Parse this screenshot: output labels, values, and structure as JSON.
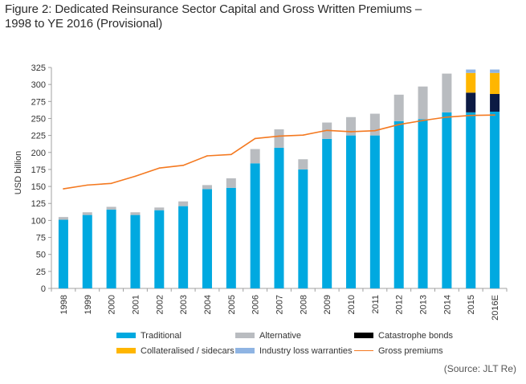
{
  "title": {
    "line1": "Figure 2: Dedicated Reinsurance Sector Capital and Gross Written Premiums –",
    "line2": "1998 to YE 2016 (Provisional)"
  },
  "source": "(Source: JLT Re)",
  "colors": {
    "traditional": "#00a9e0",
    "alternative": "#b9bcc0",
    "catastrophe_bonds": "#0c1a44",
    "collateralised": "#ffb600",
    "ilw": "#8fb4e3",
    "gross_premiums": "#f47920",
    "axis": "#a0a0a0"
  },
  "legend": [
    {
      "key": "traditional",
      "label": "Traditional",
      "type": "bar"
    },
    {
      "key": "alternative",
      "label": "Alternative",
      "type": "bar"
    },
    {
      "key": "catastrophe_bonds",
      "label": "Catastrophe bonds",
      "type": "bar",
      "swatch_color": "#000000"
    },
    {
      "key": "collateralised",
      "label": "Collateralised / sidecars",
      "type": "bar"
    },
    {
      "key": "ilw",
      "label": "Industry loss warranties",
      "type": "bar"
    },
    {
      "key": "gross_premiums",
      "label": "Gross premiums",
      "type": "line"
    }
  ],
  "chart_data": {
    "type": "bar",
    "stacked": true,
    "title": "Dedicated Reinsurance Sector Capital and Gross Written Premiums – 1998 to YE 2016 (Provisional)",
    "xlabel": "",
    "ylabel": "USD billion",
    "ylim": [
      0,
      325
    ],
    "yticks": [
      0,
      25,
      50,
      75,
      100,
      125,
      150,
      175,
      200,
      225,
      250,
      275,
      300,
      325
    ],
    "grid": false,
    "legend_position": "bottom",
    "categories": [
      "1998",
      "1999",
      "2000",
      "2001",
      "2002",
      "2003",
      "2004",
      "2005",
      "2006",
      "2007",
      "2008",
      "2009",
      "2010",
      "2011",
      "2012",
      "2013",
      "2014",
      "2015",
      "2016E"
    ],
    "series": [
      {
        "name": "Traditional",
        "key": "traditional",
        "type": "bar",
        "values": [
          101,
          108,
          116,
          108,
          115,
          121,
          146,
          148,
          184,
          207,
          175,
          220,
          225,
          225,
          246,
          249,
          259,
          259,
          260
        ]
      },
      {
        "name": "Alternative",
        "key": "alternative",
        "type": "bar",
        "values": [
          4,
          4,
          4,
          4,
          4,
          7,
          6,
          14,
          21,
          27,
          15,
          24,
          27,
          32,
          39,
          48,
          57,
          0,
          0
        ]
      },
      {
        "name": "Catastrophe bonds",
        "key": "catastrophe_bonds",
        "type": "bar",
        "values": [
          0,
          0,
          0,
          0,
          0,
          0,
          0,
          0,
          0,
          0,
          0,
          0,
          0,
          0,
          0,
          0,
          0,
          29,
          26
        ]
      },
      {
        "name": "Collateralised / sidecars",
        "key": "collateralised",
        "type": "bar",
        "values": [
          0,
          0,
          0,
          0,
          0,
          0,
          0,
          0,
          0,
          0,
          0,
          0,
          0,
          0,
          0,
          0,
          0,
          29,
          31
        ]
      },
      {
        "name": "Industry loss warranties",
        "key": "ilw",
        "type": "bar",
        "values": [
          0,
          0,
          0,
          0,
          0,
          0,
          0,
          0,
          0,
          0,
          0,
          0,
          0,
          0,
          0,
          0,
          0,
          5,
          5
        ]
      },
      {
        "name": "Gross premiums",
        "key": "gross_premiums",
        "type": "line",
        "values": [
          146.5,
          152,
          154.5,
          165,
          177,
          181,
          195,
          197,
          220.5,
          224,
          225.5,
          232.5,
          230.5,
          232,
          241,
          247,
          252,
          254.5,
          255
        ]
      }
    ]
  }
}
